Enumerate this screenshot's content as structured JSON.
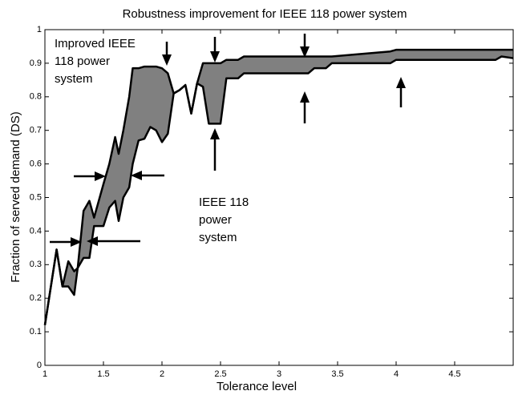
{
  "chart_data": {
    "type": "line",
    "title": "Robustness improvement for IEEE 118 power system",
    "xlabel": "Tolerance level",
    "ylabel": "Fraction of served demand (DS)",
    "x": [
      1.0,
      1.1,
      1.15,
      1.2,
      1.25,
      1.28,
      1.33,
      1.38,
      1.42,
      1.5,
      1.55,
      1.6,
      1.63,
      1.67,
      1.72,
      1.75,
      1.8,
      1.85,
      1.9,
      1.95,
      2.0,
      2.05,
      2.1,
      2.15,
      2.2,
      2.25,
      2.3,
      2.35,
      2.4,
      2.5,
      2.55,
      2.65,
      2.7,
      3.25,
      3.3,
      3.4,
      3.45,
      3.95,
      4.0,
      4.85,
      4.9,
      5.0
    ],
    "series": [
      {
        "color": "#000000",
        "values": [
          0.12,
          0.345,
          0.235,
          0.31,
          0.28,
          0.29,
          0.46,
          0.49,
          0.44,
          0.54,
          0.6,
          0.68,
          0.63,
          0.7,
          0.8,
          0.885,
          0.885,
          0.89,
          0.89,
          0.89,
          0.885,
          0.87,
          0.81,
          0.82,
          0.835,
          0.75,
          0.84,
          0.9,
          0.9,
          0.9,
          0.91,
          0.91,
          0.92,
          0.92,
          0.92,
          0.92,
          0.92,
          0.935,
          0.94,
          0.94,
          0.94,
          0.94
        ]
      },
      {
        "color": "#000000",
        "values": [
          0.12,
          0.345,
          0.235,
          0.235,
          0.21,
          0.29,
          0.32,
          0.32,
          0.415,
          0.415,
          0.47,
          0.49,
          0.43,
          0.5,
          0.53,
          0.6,
          0.67,
          0.675,
          0.71,
          0.7,
          0.665,
          0.69,
          0.81,
          0.82,
          0.835,
          0.75,
          0.84,
          0.83,
          0.72,
          0.72,
          0.855,
          0.855,
          0.87,
          0.87,
          0.885,
          0.885,
          0.9,
          0.9,
          0.91,
          0.91,
          0.92,
          0.915
        ]
      }
    ],
    "fill_color": "#808080",
    "annotations": [
      {
        "lines": [
          "Improved IEEE",
          "118 power",
          "system"
        ]
      },
      {
        "lines": [
          "IEEE 118",
          "power",
          "system"
        ]
      }
    ],
    "xlim": [
      1,
      5
    ],
    "xticks": [
      1,
      1.5,
      2,
      2.5,
      3,
      3.5,
      4,
      4.5
    ],
    "ylim": [
      0,
      1
    ],
    "yticks": [
      0,
      0.1,
      0.2,
      0.3,
      0.4,
      0.5,
      0.6,
      0.7,
      0.8,
      0.9,
      1
    ],
    "grid": false
  }
}
